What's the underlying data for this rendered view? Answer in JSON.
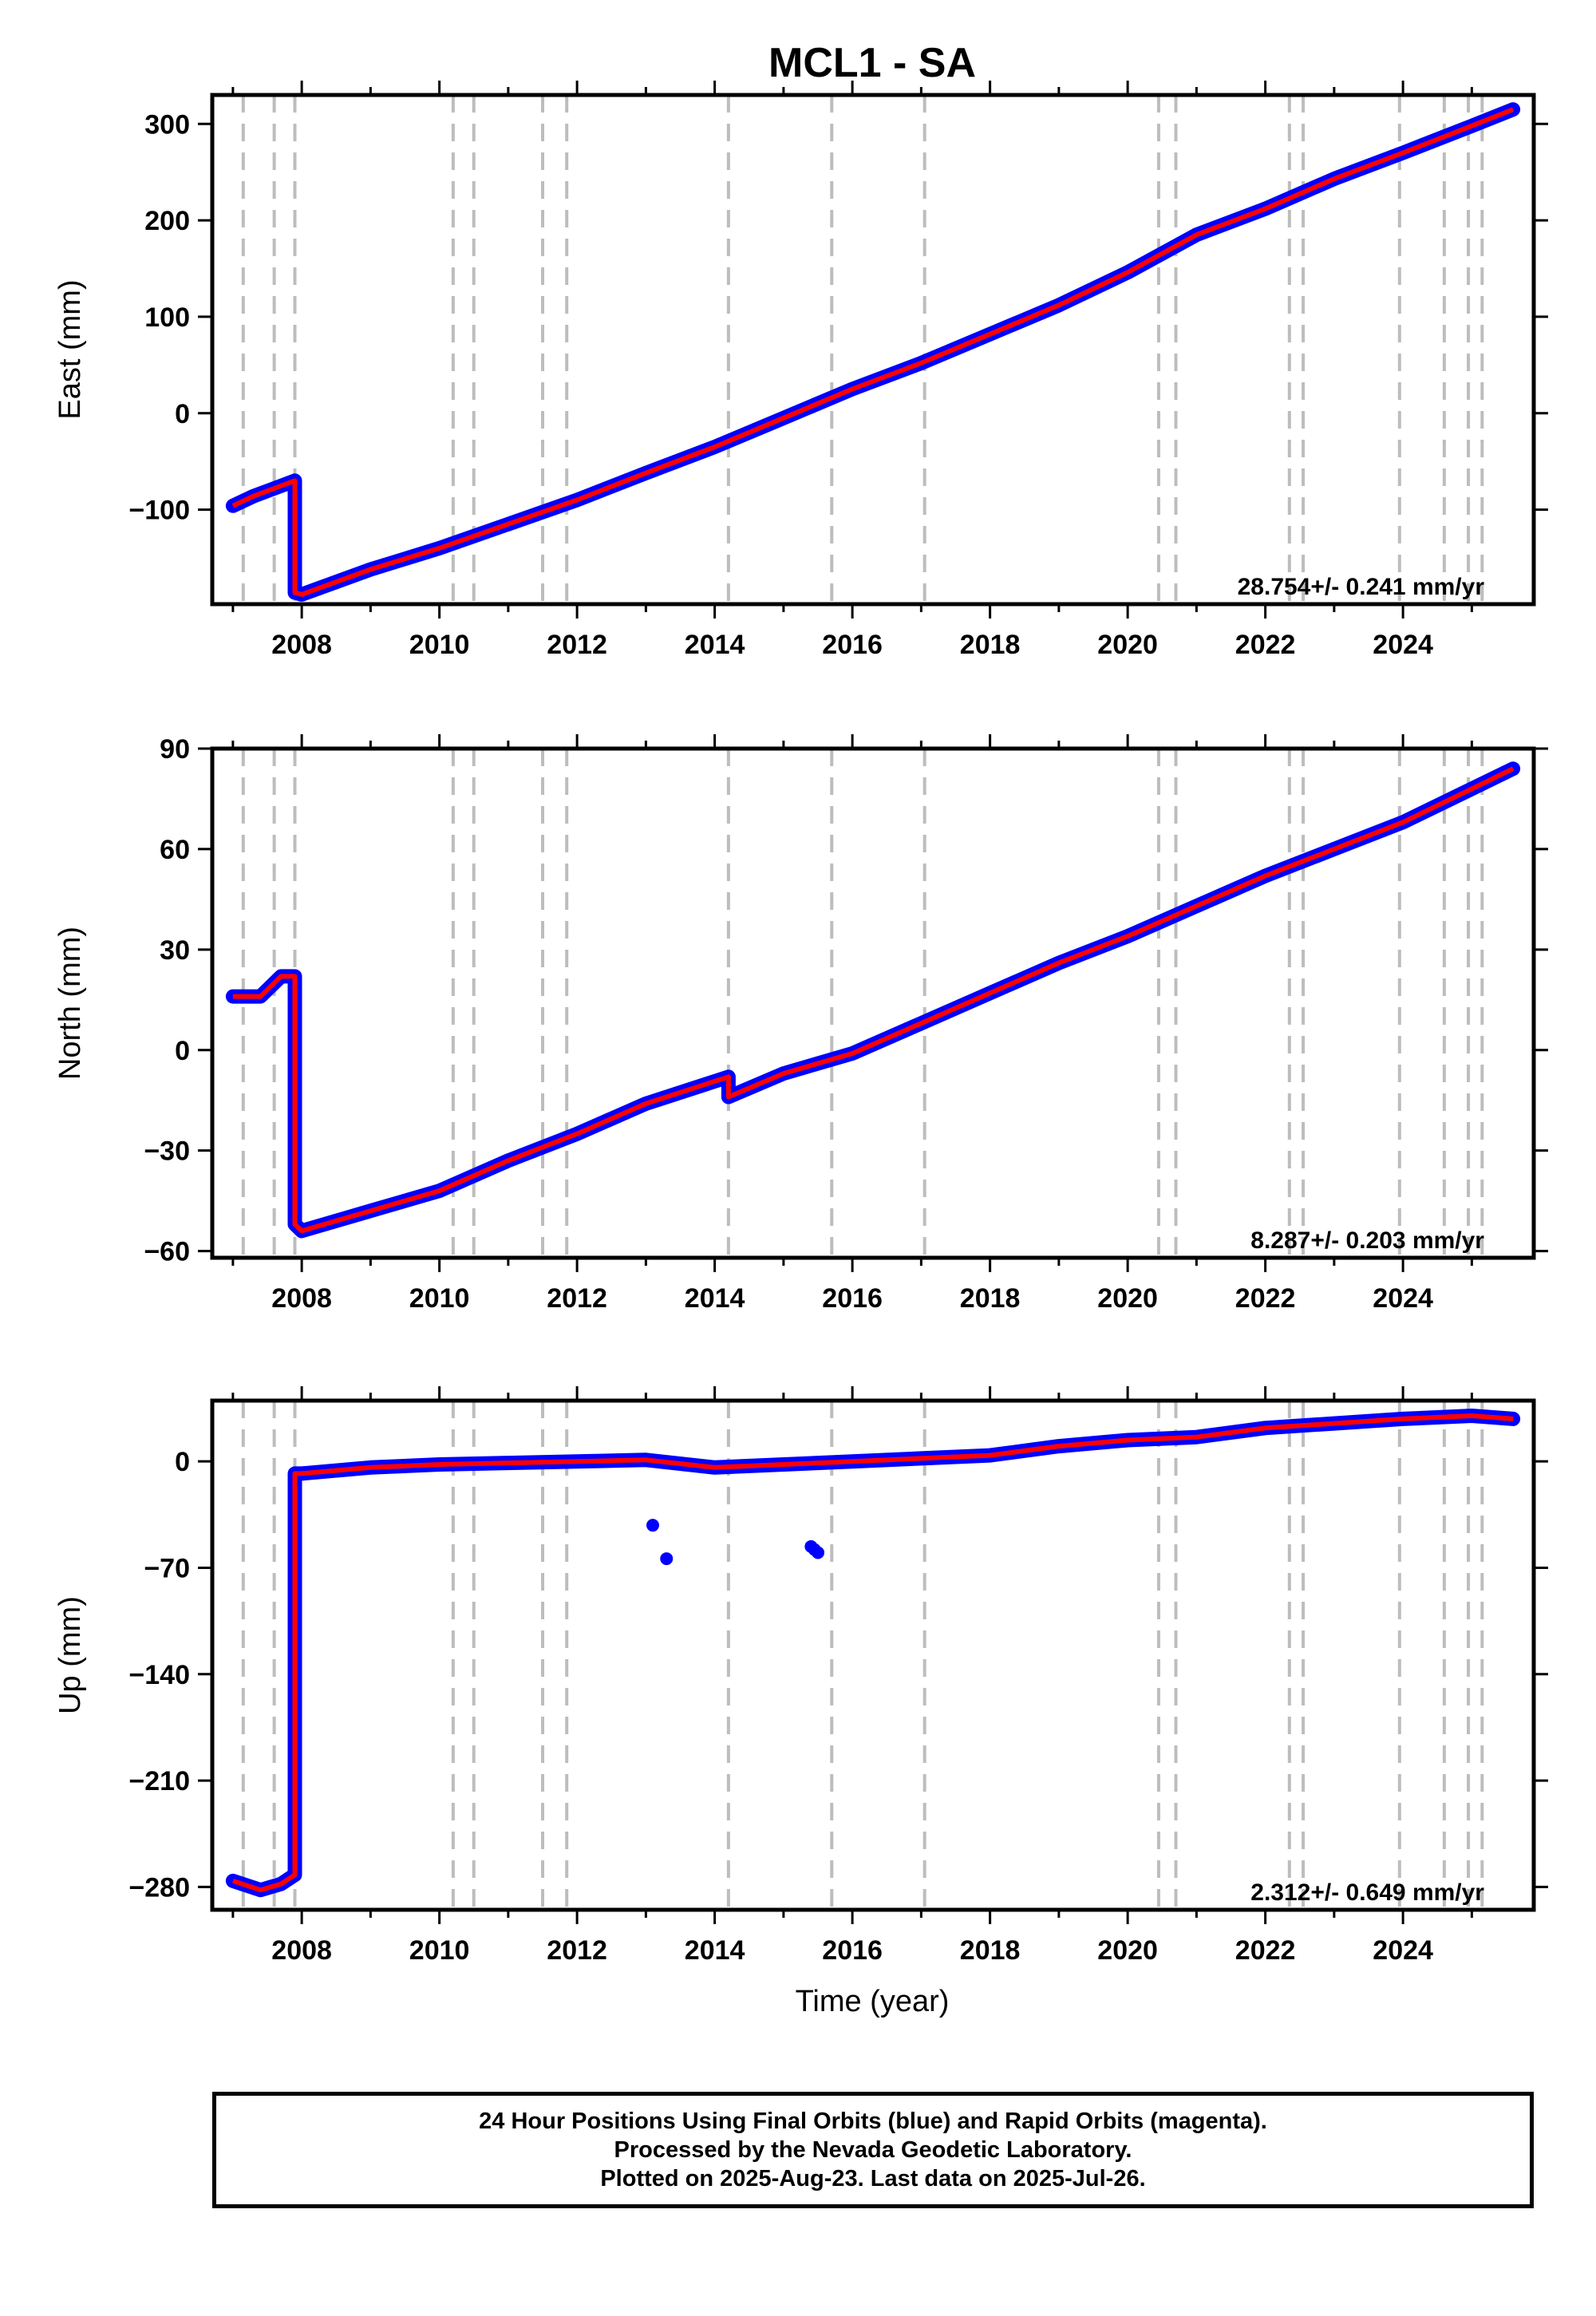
{
  "title": "MCL1 - SA",
  "xlabel": "Time (year)",
  "colors": {
    "final_orbits": "#0000ff",
    "fit": "#ff0000",
    "event_lines": "#bdbdbd",
    "frame": "#000000"
  },
  "chart_data": [
    {
      "type": "scatter",
      "name": "east",
      "ylabel": "East (mm)",
      "xlim": [
        2006.7,
        2025.9
      ],
      "ylim": [
        -198,
        330
      ],
      "yticks": [
        -100,
        0,
        100,
        200,
        300
      ],
      "xticks": [
        2008,
        2010,
        2012,
        2014,
        2016,
        2018,
        2020,
        2022,
        2024
      ],
      "rate_label": "28.754+/- 0.241 mm/yr",
      "series": [
        {
          "label": "fit",
          "x": [
            2007.0,
            2007.3,
            2007.6,
            2007.9,
            2007.9,
            2008.0,
            2009.0,
            2010.0,
            2011.0,
            2012.0,
            2013.0,
            2014.0,
            2015.0,
            2016.0,
            2017.0,
            2018.0,
            2019.0,
            2020.0,
            2021.0,
            2022.0,
            2023.0,
            2024.0,
            2025.0,
            2025.6
          ],
          "y": [
            -96,
            -86,
            -78,
            -70,
            -186,
            -188,
            -162,
            -140,
            -115,
            -90,
            -62,
            -35,
            -5,
            25,
            52,
            82,
            112,
            146,
            185,
            212,
            243,
            270,
            298,
            315
          ]
        }
      ]
    },
    {
      "type": "scatter",
      "name": "north",
      "ylabel": "North (mm)",
      "xlim": [
        2006.7,
        2025.9
      ],
      "ylim": [
        -62,
        90
      ],
      "yticks": [
        -60,
        -30,
        0,
        30,
        60,
        90
      ],
      "xticks": [
        2008,
        2010,
        2012,
        2014,
        2016,
        2018,
        2020,
        2022,
        2024
      ],
      "rate_label": "8.287+/- 0.203 mm/yr",
      "series": [
        {
          "label": "fit",
          "x": [
            2007.0,
            2007.4,
            2007.7,
            2007.9,
            2007.9,
            2008.0,
            2009.0,
            2010.0,
            2011.0,
            2012.0,
            2013.0,
            2014.2,
            2014.2,
            2015.0,
            2016.0,
            2017.0,
            2018.0,
            2019.0,
            2020.0,
            2021.0,
            2022.0,
            2023.0,
            2024.0,
            2025.0,
            2025.6
          ],
          "y": [
            16,
            16,
            22,
            22,
            -52,
            -54,
            -48,
            -42,
            -33,
            -25,
            -16,
            -8,
            -14,
            -7,
            -1,
            8,
            17,
            26,
            34,
            43,
            52,
            60,
            68,
            78,
            84
          ]
        }
      ]
    },
    {
      "type": "scatter",
      "name": "up",
      "ylabel": "Up (mm)",
      "xlim": [
        2006.7,
        2025.9
      ],
      "ylim": [
        -295,
        40
      ],
      "yticks": [
        -280,
        -210,
        -140,
        -70,
        0
      ],
      "xticks": [
        2008,
        2010,
        2012,
        2014,
        2016,
        2018,
        2020,
        2022,
        2024
      ],
      "rate_label": "2.312+/- 0.649 mm/yr",
      "series": [
        {
          "label": "fit",
          "x": [
            2007.0,
            2007.4,
            2007.7,
            2007.9,
            2007.9,
            2008.0,
            2009.0,
            2010.0,
            2011.0,
            2012.0,
            2013.0,
            2014.0,
            2015.0,
            2016.0,
            2017.0,
            2018.0,
            2019.0,
            2020.0,
            2021.0,
            2022.0,
            2023.0,
            2024.0,
            2025.0,
            2025.6
          ],
          "y": [
            -276,
            -282,
            -278,
            -272,
            -8,
            -8,
            -4,
            -2,
            -1,
            0,
            1,
            -4,
            -2,
            0,
            2,
            4,
            10,
            14,
            16,
            22,
            25,
            28,
            30,
            28
          ]
        },
        {
          "label": "outliers",
          "x": [
            2013.1,
            2013.3,
            2015.4,
            2015.45,
            2015.5
          ],
          "y": [
            -42,
            -64,
            -56,
            -58,
            -60
          ]
        }
      ]
    }
  ],
  "event_lines": [
    2007.15,
    2007.6,
    2007.9,
    2010.2,
    2010.5,
    2011.5,
    2011.85,
    2014.2,
    2015.7,
    2017.05,
    2020.45,
    2020.7,
    2022.35,
    2022.55,
    2023.95,
    2024.6,
    2024.95,
    2025.15
  ],
  "footer": {
    "line1": "24 Hour Positions Using Final Orbits (blue) and Rapid Orbits (magenta).",
    "line2": "Processed by the Nevada Geodetic Laboratory.",
    "line3": "Plotted on 2025-Aug-23. Last data on 2025-Jul-26."
  }
}
